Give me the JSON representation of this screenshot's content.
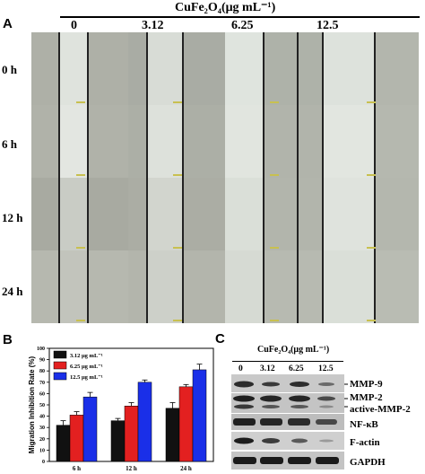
{
  "panel_a": {
    "letter": "A",
    "header_title": "CuFe₂O₄(μg mL⁻¹)",
    "concentrations": [
      "0",
      "3.12",
      "6.25",
      "12.5"
    ],
    "times": [
      "0 h",
      "6 h",
      "12 h",
      "24 h"
    ]
  },
  "panel_b": {
    "letter": "B",
    "ylabel": "Migration Inhibition Rate (%)",
    "legend": [
      "3.12 μg mL⁻¹",
      "6.25 μg mL⁻¹",
      "12.5 μg mL⁻¹"
    ],
    "colors": [
      "#111111",
      "#e32020",
      "#1a2fe8"
    ]
  },
  "chart_data": {
    "type": "bar",
    "categories": [
      "6 h",
      "12 h",
      "24 h"
    ],
    "series": [
      {
        "name": "3.12 μg mL⁻¹",
        "values": [
          32,
          36,
          47
        ],
        "errors": [
          4,
          2,
          5
        ]
      },
      {
        "name": "6.25 μg mL⁻¹",
        "values": [
          41,
          49,
          66
        ],
        "errors": [
          3,
          3,
          2
        ]
      },
      {
        "name": "12.5 μg mL⁻¹",
        "values": [
          57,
          70,
          81
        ],
        "errors": [
          4,
          2,
          5
        ]
      }
    ],
    "ylabel": "Migration Inhibition Rate (%)",
    "ylim": [
      0,
      100
    ],
    "yticks": [
      0,
      10,
      20,
      30,
      40,
      50,
      60,
      70,
      80,
      90,
      100
    ],
    "legend_position": "top-left"
  },
  "panel_c": {
    "letter": "C",
    "header_title": "CuFe₂O₄(μg mL⁻¹)",
    "lanes": [
      "0",
      "3.12",
      "6.25",
      "12.5"
    ],
    "proteins": [
      "MMP-9",
      "MMP-2",
      "active-MMP-2",
      "NF-κB",
      "F-actin",
      "GAPDH"
    ]
  }
}
